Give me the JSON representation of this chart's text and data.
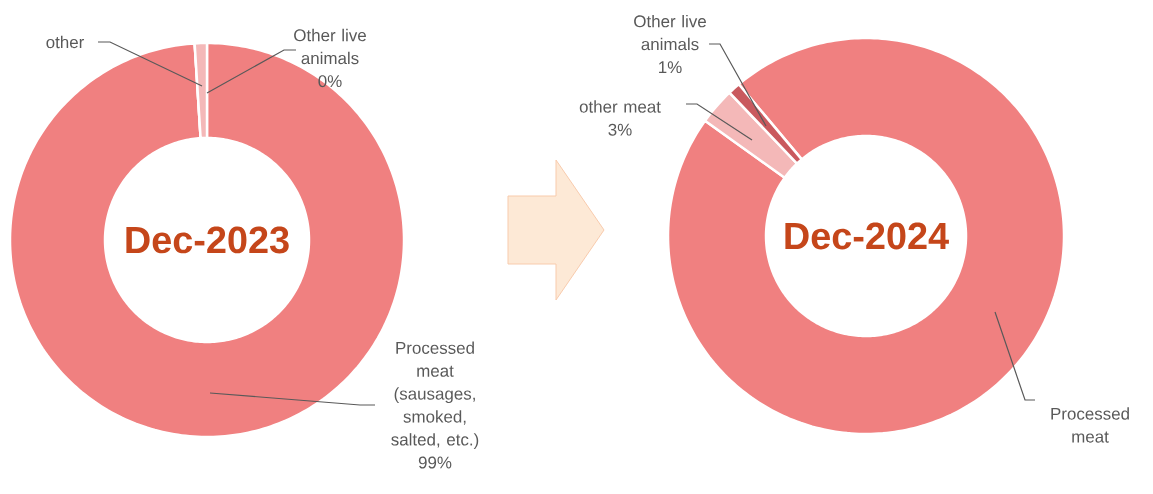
{
  "chart_data": [
    {
      "type": "donut",
      "title": "Dec-2023",
      "categories": [
        "Processed meat (sausages, smoked, salted, etc.)",
        "Other live animals",
        "other"
      ],
      "values": [
        99,
        0,
        1
      ],
      "colors": [
        "#f08080",
        "#c9595e",
        "#f4b8b8"
      ],
      "value_labels": [
        "99%",
        "0%",
        null
      ]
    },
    {
      "type": "donut",
      "title": "Dec-2024",
      "categories": [
        "Processed meat",
        "other meat",
        "Other live animals"
      ],
      "values": [
        96,
        3,
        1
      ],
      "colors": [
        "#f08080",
        "#f4b8b8",
        "#c9595e"
      ],
      "value_labels": [
        null,
        "3%",
        "1%"
      ]
    }
  ]
}
